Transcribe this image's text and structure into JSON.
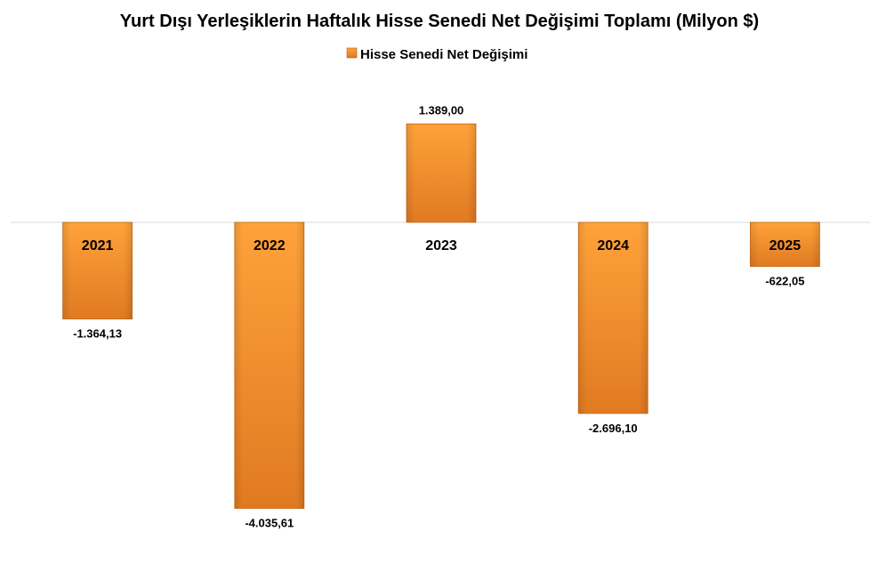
{
  "chart_data": {
    "type": "bar",
    "title": "Yurt Dışı Yerleşiklerin Haftalık Hisse Senedi Net Değişimi Toplamı (Milyon $)",
    "categories": [
      "2021",
      "2022",
      "2023",
      "2024",
      "2025"
    ],
    "series": [
      {
        "name": "Hisse Senedi Net Değişimi",
        "values": [
          -1364.13,
          -4035.61,
          1389.0,
          -2696.1,
          -622.05
        ],
        "labels": [
          "-1.364,13",
          "-4.035,61",
          "1.389,00",
          "-2.696,10",
          "-622,05"
        ]
      }
    ],
    "legend_position": "top",
    "grid": false,
    "bar_color": "#F28C28"
  }
}
